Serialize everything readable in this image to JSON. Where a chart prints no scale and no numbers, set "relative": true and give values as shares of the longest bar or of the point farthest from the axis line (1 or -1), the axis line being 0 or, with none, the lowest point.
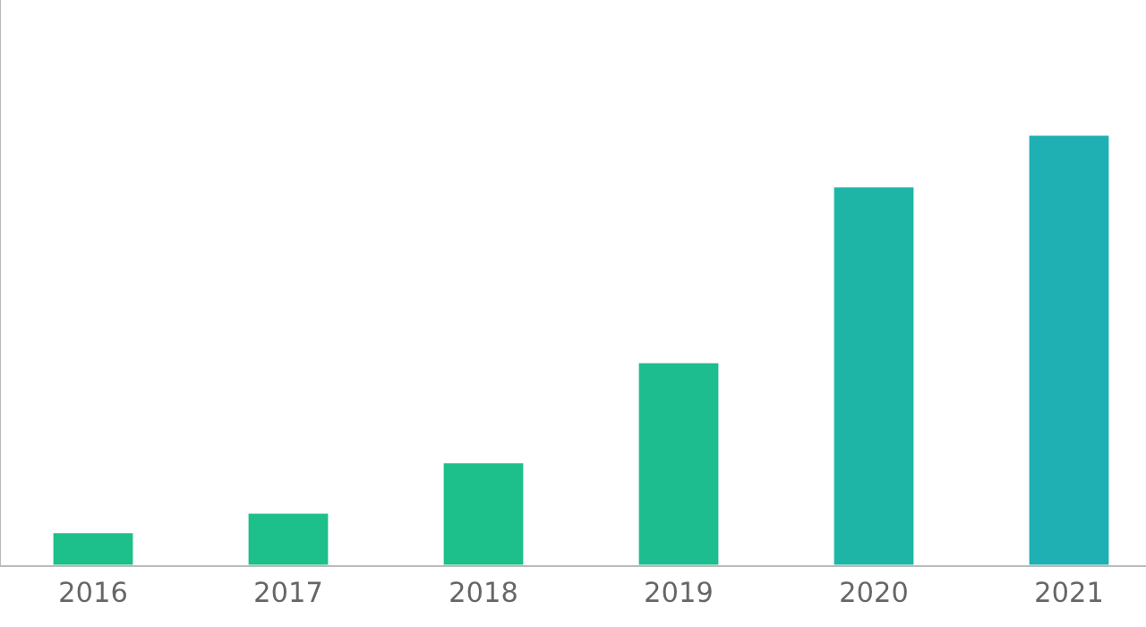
{
  "chart_data": {
    "type": "bar",
    "relative": true,
    "categories": [
      "2016",
      "2017",
      "2018",
      "2019",
      "2020",
      "2021"
    ],
    "values": [
      0.079,
      0.124,
      0.241,
      0.473,
      0.88,
      1
    ],
    "colors": [
      "#1dbf8a",
      "#1dbf8a",
      "#1dbf8a",
      "#1dbd90",
      "#1eb5a6",
      "#1fb0b4"
    ],
    "grid": false,
    "legend": false
  }
}
